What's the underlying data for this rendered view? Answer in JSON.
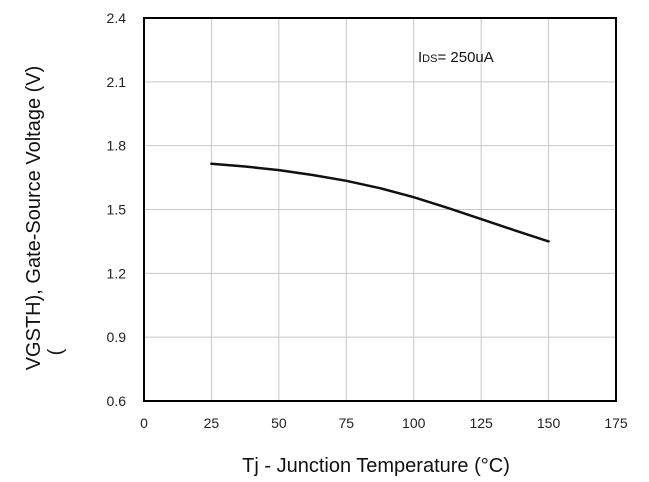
{
  "chart_data": {
    "type": "line",
    "xlabel": "Tj - Junction Temperature (°C)",
    "ylabel_main": "V",
    "ylabel_sub": "GS",
    "ylabel_rest": "TH), Gate-Source Voltage (V)",
    "ylabel_paren": "(",
    "x_ticks": [
      0,
      25,
      50,
      75,
      100,
      125,
      150,
      175
    ],
    "y_ticks": [
      0.6,
      0.9,
      1.2,
      1.5,
      1.8,
      2.1,
      2.4
    ],
    "x_tick_labels": [
      "0",
      "25",
      "50",
      "75",
      "100",
      "125",
      "150",
      "175"
    ],
    "y_tick_labels": [
      "0.6",
      "0.9",
      "1.2",
      "1.5",
      "1.8",
      "2.1",
      "2.4"
    ],
    "xlim": [
      0,
      175
    ],
    "ylim": [
      0.6,
      2.4
    ],
    "grid": true,
    "annotation": {
      "main": "I",
      "sub": "DS",
      "rest": "= 250uA"
    },
    "series": [
      {
        "x": [
          25,
          37.5,
          50,
          62.5,
          75,
          87.5,
          100,
          112.5,
          125,
          137.5,
          150
        ],
        "y": [
          1.715,
          1.702,
          1.685,
          1.662,
          1.635,
          1.6,
          1.558,
          1.508,
          1.455,
          1.402,
          1.35
        ]
      }
    ],
    "colors": {
      "line": "#111111",
      "grid": "#c8c8c8",
      "frame": "#000000"
    }
  }
}
